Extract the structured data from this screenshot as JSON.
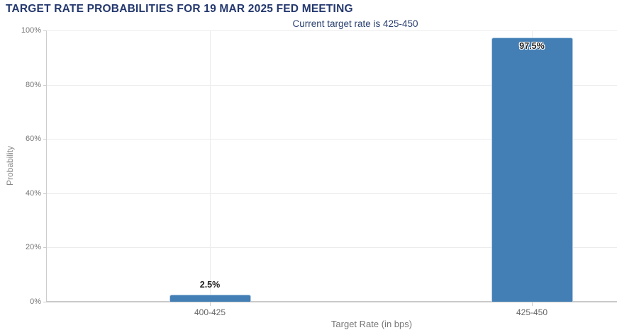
{
  "chart_data": {
    "type": "bar",
    "title": "TARGET RATE PROBABILITIES FOR 19 MAR 2025 FED MEETING",
    "subtitle": "Current target rate is 425-450",
    "categories": [
      "400-425",
      "425-450"
    ],
    "values": [
      2.5,
      97.5
    ],
    "bar_labels": [
      "2.5%",
      "97.5%"
    ],
    "xlabel": "Target Rate (in bps)",
    "ylabel": "Probability",
    "ylim": [
      0,
      100
    ],
    "ytick_step": 20,
    "ytick_labels": [
      "0%",
      "20%",
      "40%",
      "60%",
      "80%",
      "100%"
    ],
    "grid": true,
    "legend_position": "none",
    "colors": {
      "bar": "#437eb4",
      "bar_border": "#b5d0e8",
      "title_text": "#24386e",
      "subtitle_text": "#2b4170",
      "tick_text": "#666666",
      "gridline": "#ececec",
      "axis_line": "#cccccc"
    }
  }
}
